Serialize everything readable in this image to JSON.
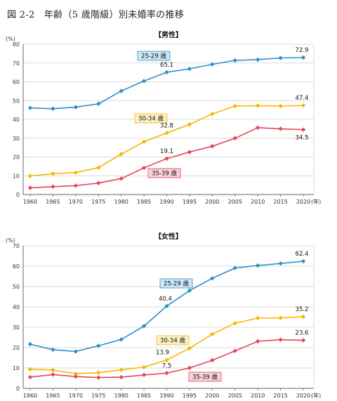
{
  "figure_title": "図 2-2　年齢（5 歳階級）別未婚率の推移",
  "colors": {
    "s2529": "#2e8fc8",
    "s3034": "#f5b800",
    "s3539": "#e8455a",
    "box2529": "#cfe6f5",
    "box3034": "#fbefc4",
    "box3539": "#f7d3d6"
  },
  "chart_data": [
    {
      "type": "line",
      "title": "【男性】",
      "ylabel": "(%)",
      "xlabel": "(年)",
      "ylim": [
        0,
        80
      ],
      "yticks": [
        0,
        10,
        20,
        30,
        40,
        50,
        60,
        70,
        80
      ],
      "grid": true,
      "categories": [
        "1960",
        "1965",
        "1970",
        "1975",
        "1980",
        "1985",
        "1990",
        "1995",
        "2000",
        "2005",
        "2010",
        "2015",
        "2020"
      ],
      "series": [
        {
          "name": "25-29 歳",
          "color_key": "s2529",
          "box_key": "box2529",
          "values": [
            46.1,
            45.7,
            46.5,
            48.3,
            55.1,
            60.4,
            65.1,
            66.9,
            69.3,
            71.4,
            71.8,
            72.7,
            72.9
          ]
        },
        {
          "name": "30-34 歳",
          "color_key": "s3034",
          "box_key": "box3034",
          "values": [
            9.9,
            11.1,
            11.7,
            14.3,
            21.5,
            28.1,
            32.8,
            37.3,
            42.9,
            47.1,
            47.3,
            47.1,
            47.4
          ]
        },
        {
          "name": "35-39 歳",
          "color_key": "s3539",
          "box_key": "box3539",
          "values": [
            3.6,
            4.2,
            4.7,
            6.1,
            8.5,
            14.2,
            19.1,
            22.6,
            25.7,
            30.0,
            35.6,
            35.0,
            34.5
          ]
        }
      ],
      "annotations": [
        {
          "text": "72.9",
          "x": "2020",
          "y": 72.9
        },
        {
          "text": "65.1",
          "x": "1990",
          "y": 65.1
        },
        {
          "text": "47.4",
          "x": "2020",
          "y": 47.4
        },
        {
          "text": "32.8",
          "x": "1990",
          "y": 32.8
        },
        {
          "text": "19.1",
          "x": "1990",
          "y": 19.1
        },
        {
          "text": "34.5",
          "x": "2020",
          "y": 34.5
        }
      ]
    },
    {
      "type": "line",
      "title": "【女性】",
      "ylabel": "(%)",
      "xlabel": "(年)",
      "ylim": [
        0,
        70
      ],
      "yticks": [
        0,
        10,
        20,
        30,
        40,
        50,
        60,
        70
      ],
      "grid": true,
      "categories": [
        "1960",
        "1965",
        "1970",
        "1975",
        "1980",
        "1985",
        "1990",
        "1995",
        "2000",
        "2005",
        "2010",
        "2015",
        "2020"
      ],
      "series": [
        {
          "name": "25-29 歳",
          "color_key": "s2529",
          "box_key": "box2529",
          "values": [
            21.7,
            19.0,
            18.1,
            20.9,
            24.0,
            30.6,
            40.4,
            48.0,
            54.0,
            59.1,
            60.3,
            61.3,
            62.4
          ]
        },
        {
          "name": "30-34 歳",
          "color_key": "s3034",
          "box_key": "box3034",
          "values": [
            9.4,
            9.0,
            7.2,
            7.7,
            9.1,
            10.4,
            13.9,
            19.7,
            26.6,
            32.0,
            34.5,
            34.6,
            35.2
          ]
        },
        {
          "name": "35-39 歳",
          "color_key": "s3539",
          "box_key": "box3539",
          "values": [
            5.5,
            6.8,
            5.8,
            5.3,
            5.5,
            6.6,
            7.5,
            10.0,
            13.8,
            18.4,
            23.1,
            23.9,
            23.6
          ]
        }
      ],
      "annotations": [
        {
          "text": "62.4",
          "x": "2020",
          "y": 62.4
        },
        {
          "text": "40.4",
          "x": "1990",
          "y": 40.4
        },
        {
          "text": "35.2",
          "x": "2020",
          "y": 35.2
        },
        {
          "text": "13.9",
          "x": "1990",
          "y": 13.9
        },
        {
          "text": "7.5",
          "x": "1990",
          "y": 7.5
        },
        {
          "text": "23.6",
          "x": "2020",
          "y": 23.6
        }
      ]
    }
  ]
}
